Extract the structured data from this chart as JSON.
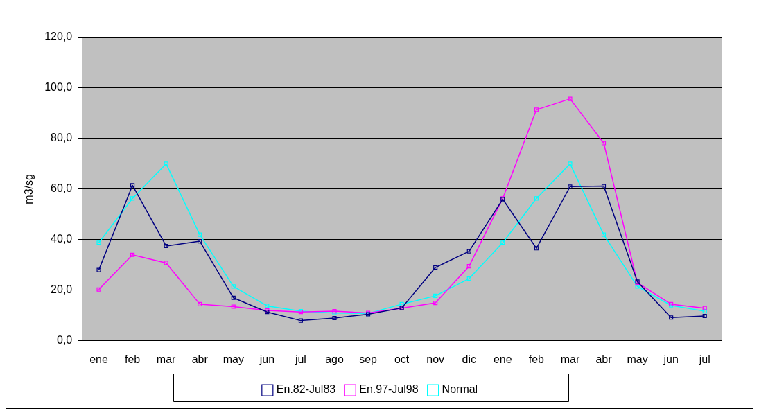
{
  "chart_data": {
    "type": "line",
    "ylabel": "m3/sg",
    "categories": [
      "ene",
      "feb",
      "mar",
      "abr",
      "may",
      "jun",
      "jul",
      "ago",
      "sep",
      "oct",
      "nov",
      "dic",
      "ene",
      "feb",
      "mar",
      "abr",
      "may",
      "jun",
      "jul"
    ],
    "series": [
      {
        "name": "En.82-Jul83",
        "color": "#000080",
        "values": [
          28,
          61.5,
          37.5,
          39.4,
          17,
          11.4,
          8,
          9,
          10.5,
          13,
          29,
          35.4,
          56,
          36.6,
          61,
          61.2,
          23.4,
          9.2,
          9.8
        ]
      },
      {
        "name": "En.97-Jul98",
        "color": "#ff00ff",
        "values": [
          20.3,
          34,
          30.8,
          14.5,
          13.5,
          12,
          11.4,
          11.7,
          11,
          12.9,
          15,
          29.5,
          56.3,
          91.4,
          95.7,
          78.2,
          23,
          14.5,
          12.9
        ]
      },
      {
        "name": "Normal",
        "color": "#00ffff",
        "values": [
          38.8,
          56.3,
          70,
          42,
          21.5,
          13.8,
          11.7,
          11,
          10.8,
          14.5,
          17.8,
          24.6,
          38.8,
          56.3,
          70,
          42,
          21.5,
          14,
          11.7
        ]
      }
    ],
    "ylim": [
      0,
      120
    ],
    "yticks": [
      {
        "value": 0,
        "label": "0,0"
      },
      {
        "value": 20,
        "label": "20,0"
      },
      {
        "value": 40,
        "label": "40,0"
      },
      {
        "value": 60,
        "label": "60,0"
      },
      {
        "value": 80,
        "label": "80,0"
      },
      {
        "value": 100,
        "label": "100,0"
      },
      {
        "value": 120,
        "label": "120,0"
      }
    ],
    "grid": "y",
    "legend": "bottom",
    "marker": "square",
    "line_style": "solid"
  }
}
